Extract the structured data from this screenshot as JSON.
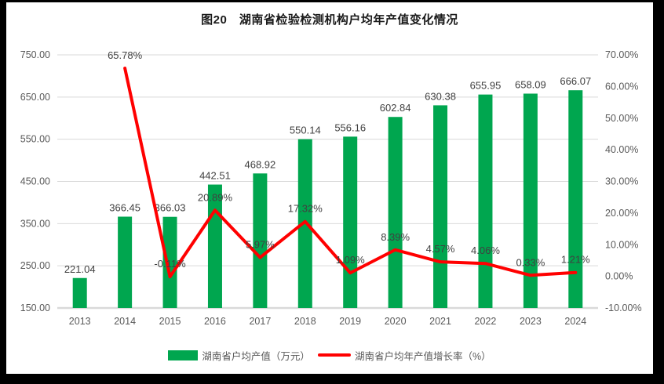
{
  "title": "图20　湖南省检验检测机构户均年产值变化情况",
  "colors": {
    "bar": "#00A64F",
    "line": "#FF0000",
    "grid": "#D9D9D9",
    "axis_text": "#595959",
    "data_label": "#404040",
    "frame_border": "#000000"
  },
  "chart_data": {
    "type": "bar",
    "subtype": "combo-bar-line",
    "title": "图20　湖南省检验检测机构户均年产值变化情况",
    "categories": [
      "2013",
      "2014",
      "2015",
      "2016",
      "2017",
      "2018",
      "2019",
      "2020",
      "2021",
      "2022",
      "2023",
      "2024"
    ],
    "series": [
      {
        "name": "湖南省户均产值（万元）",
        "type": "bar",
        "axis": "left",
        "values": [
          221.04,
          366.45,
          366.03,
          442.51,
          468.92,
          550.14,
          556.16,
          602.84,
          630.38,
          655.95,
          658.09,
          666.07
        ],
        "labels": [
          "221.04",
          "366.45",
          "366.03",
          "442.51",
          "468.92",
          "550.14",
          "556.16",
          "602.84",
          "630.38",
          "655.95",
          "658.09",
          "666.07"
        ]
      },
      {
        "name": "湖南省户均年产值增长率（%）",
        "type": "line",
        "axis": "right",
        "values": [
          null,
          65.78,
          -0.11,
          20.89,
          5.97,
          17.32,
          1.09,
          8.39,
          4.57,
          4.06,
          0.33,
          1.21
        ],
        "labels": [
          null,
          "65.78%",
          "-0.11%",
          "20.89%",
          "5.97%",
          "17.32%",
          "1.09%",
          "8.39%",
          "4.57%",
          "4.06%",
          "0.33%",
          "1.21%"
        ]
      }
    ],
    "left_axis": {
      "min": 150,
      "max": 750,
      "step": 100,
      "ticks": [
        "750.00",
        "650.00",
        "550.00",
        "450.00",
        "350.00",
        "250.00",
        "150.00"
      ]
    },
    "right_axis": {
      "min": -10,
      "max": 70,
      "step": 10,
      "ticks": [
        "70.00%",
        "60.00%",
        "50.00%",
        "40.00%",
        "30.00%",
        "20.00%",
        "10.00%",
        "0.00%",
        "-10.00%"
      ]
    },
    "grid": true,
    "legend_position": "bottom"
  },
  "legend": {
    "items": [
      {
        "label": "湖南省户均产值（万元）"
      },
      {
        "label": "湖南省户均年产值增长率（%）"
      }
    ]
  }
}
